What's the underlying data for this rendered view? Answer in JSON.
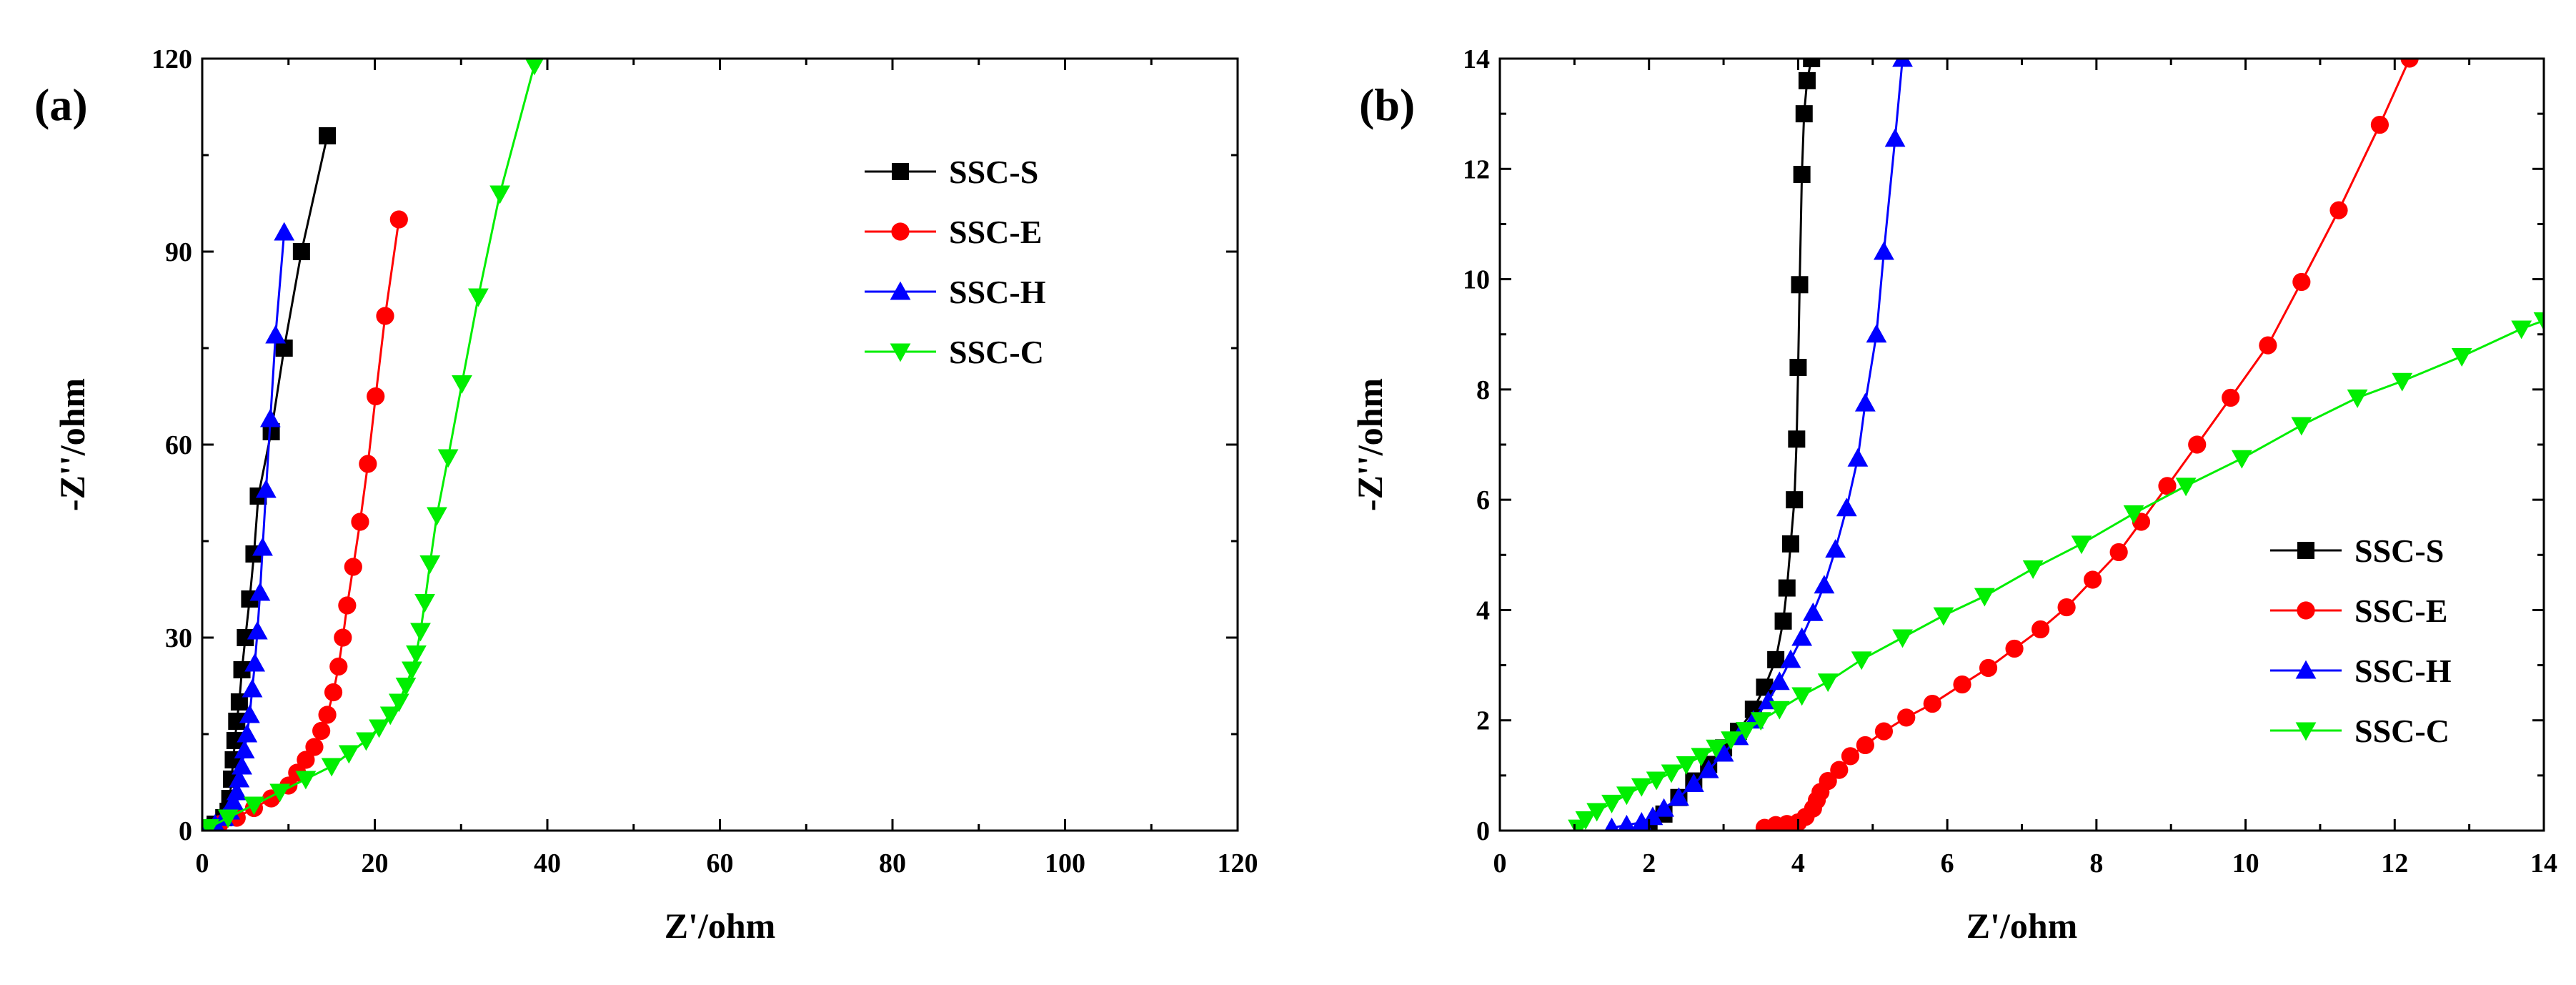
{
  "chart_data": [
    {
      "panel": "(a)",
      "type": "scatter",
      "xlabel": "Z'/ohm",
      "ylabel": "-Z''/ohm",
      "xlim": [
        0,
        120
      ],
      "ylim": [
        0,
        120
      ],
      "xticks": [
        0,
        20,
        40,
        60,
        80,
        100,
        120
      ],
      "yticks": [
        0,
        30,
        60,
        90,
        120
      ],
      "legend_position": "top-center",
      "series": [
        {
          "name": "SSC-S",
          "color": "#000000",
          "marker": "square",
          "x": [
            0.5,
            1.5,
            2.5,
            3.0,
            3.2,
            3.4,
            3.6,
            3.8,
            4.0,
            4.3,
            4.6,
            5.0,
            5.5,
            6.0,
            6.5,
            8.0,
            9.5,
            11.5,
            14.5
          ],
          "y": [
            0.3,
            1,
            2,
            3,
            5,
            8,
            11,
            14,
            17,
            20,
            25,
            30,
            36,
            43,
            52,
            62,
            75,
            90,
            108
          ]
        },
        {
          "name": "SSC-E",
          "color": "#ff0000",
          "marker": "circle",
          "x": [
            0.5,
            2,
            4,
            6,
            8,
            10,
            11,
            12,
            13,
            13.8,
            14.5,
            15.2,
            15.8,
            16.3,
            16.8,
            17.5,
            18.3,
            19.2,
            20.1,
            21.2,
            22.8
          ],
          "y": [
            0.3,
            1,
            2,
            3.5,
            5,
            7,
            9,
            11,
            13,
            15.5,
            18,
            21.5,
            25.5,
            30,
            35,
            41,
            48,
            57,
            67.5,
            80,
            95
          ]
        },
        {
          "name": "SSC-H",
          "color": "#0000ff",
          "marker": "triangle-up",
          "x": [
            0.5,
            1.5,
            2.5,
            3.2,
            3.6,
            4.0,
            4.3,
            4.6,
            4.9,
            5.2,
            5.5,
            5.8,
            6.1,
            6.4,
            6.7,
            7.0,
            7.4,
            7.9,
            8.5,
            9.5
          ],
          "y": [
            0.3,
            1,
            2,
            3,
            4.5,
            6,
            8,
            10,
            12.5,
            15,
            18,
            22,
            26,
            31,
            37,
            44,
            53,
            64,
            77,
            93
          ]
        },
        {
          "name": "SSC-C",
          "color": "#00ee00",
          "marker": "triangle-down",
          "x": [
            0.8,
            3,
            6,
            9,
            12,
            15,
            17,
            19,
            20.5,
            21.8,
            22.8,
            23.6,
            24.3,
            24.8,
            25.3,
            25.8,
            26.4,
            27.2,
            28.5,
            30.1,
            32,
            34.5,
            38.5
          ],
          "y": [
            0.5,
            2,
            4,
            6,
            8,
            10,
            12,
            14,
            16,
            18,
            20,
            22.5,
            25,
            27.5,
            31,
            35.5,
            41.5,
            49,
            58,
            69.5,
            83,
            99,
            119
          ]
        }
      ]
    },
    {
      "panel": "(b)",
      "type": "scatter",
      "xlabel": "Z'/ohm",
      "ylabel": "-Z''/ohm",
      "xlim": [
        0,
        14
      ],
      "ylim": [
        0,
        14
      ],
      "xticks": [
        0,
        2,
        4,
        6,
        8,
        10,
        12,
        14
      ],
      "yticks": [
        0,
        2,
        4,
        6,
        8,
        10,
        12,
        14
      ],
      "legend_position": "bottom-right",
      "series": [
        {
          "name": "SSC-S",
          "color": "#000000",
          "marker": "square",
          "x": [
            2.0,
            2.2,
            2.4,
            2.6,
            2.8,
            3.0,
            3.2,
            3.4,
            3.55,
            3.7,
            3.8,
            3.85,
            3.9,
            3.95,
            3.98,
            4.0,
            4.02,
            4.05,
            4.08,
            4.12,
            4.18
          ],
          "y": [
            0.05,
            0.3,
            0.6,
            0.9,
            1.2,
            1.5,
            1.8,
            2.2,
            2.6,
            3.1,
            3.8,
            4.4,
            5.2,
            6.0,
            7.1,
            8.4,
            9.9,
            11.9,
            13.0,
            13.6,
            14.0
          ]
        },
        {
          "name": "SSC-E",
          "color": "#ff0000",
          "marker": "circle",
          "x": [
            3.55,
            3.7,
            3.85,
            4.0,
            4.1,
            4.2,
            4.25,
            4.3,
            4.4,
            4.55,
            4.7,
            4.9,
            5.15,
            5.45,
            5.8,
            6.2,
            6.55,
            6.9,
            7.25,
            7.6,
            7.95,
            8.3,
            8.6,
            8.95,
            9.35,
            9.8,
            10.3,
            10.75,
            11.25,
            11.8,
            12.2
          ],
          "y": [
            0.05,
            0.1,
            0.12,
            0.15,
            0.25,
            0.4,
            0.55,
            0.7,
            0.9,
            1.1,
            1.35,
            1.55,
            1.8,
            2.05,
            2.3,
            2.65,
            2.95,
            3.3,
            3.65,
            4.05,
            4.55,
            5.05,
            5.6,
            6.25,
            7.0,
            7.85,
            8.8,
            9.95,
            11.25,
            12.8,
            14.0
          ]
        },
        {
          "name": "SSC-H",
          "color": "#0000ff",
          "marker": "triangle-up",
          "x": [
            1.5,
            1.7,
            1.9,
            2.05,
            2.2,
            2.4,
            2.6,
            2.8,
            3.0,
            3.2,
            3.4,
            3.6,
            3.75,
            3.9,
            4.05,
            4.2,
            4.35,
            4.5,
            4.65,
            4.8,
            4.9,
            5.05,
            5.15,
            5.3,
            5.4
          ],
          "y": [
            0.05,
            0.1,
            0.15,
            0.25,
            0.4,
            0.6,
            0.85,
            1.1,
            1.4,
            1.7,
            2.0,
            2.35,
            2.7,
            3.1,
            3.5,
            3.95,
            4.45,
            5.1,
            5.85,
            6.75,
            7.75,
            9.0,
            10.5,
            12.55,
            14.0
          ]
        },
        {
          "name": "SSC-C",
          "color": "#00ee00",
          "marker": "triangle-down",
          "x": [
            1.05,
            1.15,
            1.3,
            1.5,
            1.7,
            1.9,
            2.1,
            2.3,
            2.5,
            2.7,
            2.9,
            3.1,
            3.3,
            3.5,
            3.75,
            4.05,
            4.4,
            4.85,
            5.4,
            5.95,
            6.5,
            7.15,
            7.8,
            8.5,
            9.2,
            9.95,
            10.75,
            11.5,
            12.1,
            12.9,
            13.7,
            14.0
          ],
          "y": [
            0.05,
            0.2,
            0.35,
            0.5,
            0.65,
            0.8,
            0.92,
            1.05,
            1.2,
            1.35,
            1.5,
            1.65,
            1.82,
            2.0,
            2.2,
            2.45,
            2.7,
            3.1,
            3.5,
            3.9,
            4.25,
            4.75,
            5.2,
            5.75,
            6.25,
            6.75,
            7.35,
            7.85,
            8.15,
            8.6,
            9.1,
            9.25
          ]
        }
      ]
    }
  ]
}
